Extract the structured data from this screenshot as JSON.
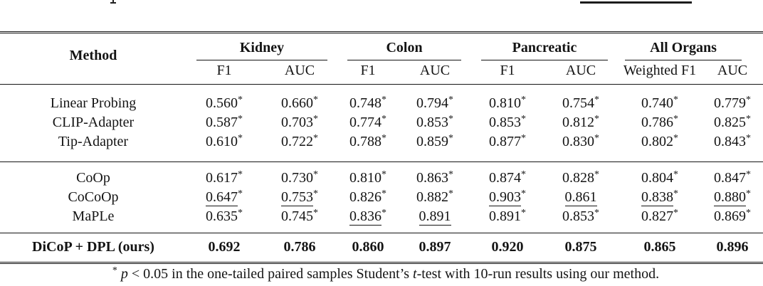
{
  "table": {
    "method_header": "Method",
    "star_symbol": "*",
    "groups": [
      {
        "label": "Kidney",
        "subcols": [
          "F1",
          "AUC"
        ]
      },
      {
        "label": "Colon",
        "subcols": [
          "F1",
          "AUC"
        ]
      },
      {
        "label": "Pancreatic",
        "subcols": [
          "F1",
          "AUC"
        ]
      },
      {
        "label": "All Organs",
        "subcols": [
          "Weighted F1",
          "AUC"
        ]
      }
    ],
    "row_groups": [
      {
        "name": "adapter-baselines",
        "rows": [
          {
            "method": "Linear Probing",
            "cells": [
              {
                "v": "0.560",
                "star": true
              },
              {
                "v": "0.660",
                "star": true
              },
              {
                "v": "0.748",
                "star": true
              },
              {
                "v": "0.794",
                "star": true
              },
              {
                "v": "0.810",
                "star": true
              },
              {
                "v": "0.754",
                "star": true
              },
              {
                "v": "0.740",
                "star": true
              },
              {
                "v": "0.779",
                "star": true
              }
            ]
          },
          {
            "method": "CLIP-Adapter",
            "cells": [
              {
                "v": "0.587",
                "star": true
              },
              {
                "v": "0.703",
                "star": true
              },
              {
                "v": "0.774",
                "star": true
              },
              {
                "v": "0.853",
                "star": true
              },
              {
                "v": "0.853",
                "star": true
              },
              {
                "v": "0.812",
                "star": true
              },
              {
                "v": "0.786",
                "star": true
              },
              {
                "v": "0.825",
                "star": true
              }
            ]
          },
          {
            "method": "Tip-Adapter",
            "cells": [
              {
                "v": "0.610",
                "star": true
              },
              {
                "v": "0.722",
                "star": true
              },
              {
                "v": "0.788",
                "star": true
              },
              {
                "v": "0.859",
                "star": true
              },
              {
                "v": "0.877",
                "star": true
              },
              {
                "v": "0.830",
                "star": true
              },
              {
                "v": "0.802",
                "star": true
              },
              {
                "v": "0.843",
                "star": true
              }
            ]
          }
        ]
      },
      {
        "name": "prompt-learning",
        "rows": [
          {
            "method": "CoOp",
            "cells": [
              {
                "v": "0.617",
                "star": true
              },
              {
                "v": "0.730",
                "star": true
              },
              {
                "v": "0.810",
                "star": true
              },
              {
                "v": "0.863",
                "star": true
              },
              {
                "v": "0.874",
                "star": true
              },
              {
                "v": "0.828",
                "star": true
              },
              {
                "v": "0.804",
                "star": true
              },
              {
                "v": "0.847",
                "star": true
              }
            ]
          },
          {
            "method": "CoCoOp",
            "cells": [
              {
                "v": "0.647",
                "star": true,
                "underline": true
              },
              {
                "v": "0.753",
                "star": true,
                "underline": true
              },
              {
                "v": "0.826",
                "star": true
              },
              {
                "v": "0.882",
                "star": true
              },
              {
                "v": "0.903",
                "star": true,
                "underline": true
              },
              {
                "v": "0.861",
                "underline": true
              },
              {
                "v": "0.838",
                "star": true,
                "underline": true
              },
              {
                "v": "0.880",
                "star": true,
                "underline": true
              }
            ]
          },
          {
            "method": "MaPLe",
            "cells": [
              {
                "v": "0.635",
                "star": true
              },
              {
                "v": "0.745",
                "star": true
              },
              {
                "v": "0.836",
                "star": true,
                "underline": true
              },
              {
                "v": "0.891",
                "underline": true
              },
              {
                "v": "0.891",
                "star": true
              },
              {
                "v": "0.853",
                "star": true
              },
              {
                "v": "0.827",
                "star": true
              },
              {
                "v": "0.869",
                "star": true
              }
            ]
          }
        ]
      },
      {
        "name": "ours",
        "rows": [
          {
            "method": "DiCoP + DPL (ours)",
            "bold": true,
            "cells": [
              {
                "v": "0.692",
                "bold": true
              },
              {
                "v": "0.786",
                "bold": true
              },
              {
                "v": "0.860",
                "bold": true
              },
              {
                "v": "0.897",
                "bold": true
              },
              {
                "v": "0.920",
                "bold": true
              },
              {
                "v": "0.875",
                "bold": true
              },
              {
                "v": "0.865",
                "bold": true
              },
              {
                "v": "0.896",
                "bold": true
              }
            ]
          }
        ]
      }
    ],
    "footnote": {
      "marker": "*",
      "parts": [
        {
          "style": "italic",
          "text": "p"
        },
        {
          "style": "normal",
          "text": " < 0.05 in the one-tailed paired samples Student’s "
        },
        {
          "style": "italic",
          "text": "t"
        },
        {
          "style": "normal",
          "text": "-test with 10-run results using our method."
        }
      ]
    }
  },
  "colors": {
    "background": "#ffffff",
    "text": "#141414",
    "rule": "#141414"
  }
}
